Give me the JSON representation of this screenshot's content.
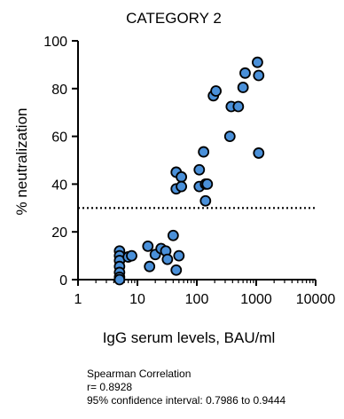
{
  "chart_data": {
    "type": "scatter",
    "title": "CATEGORY 2",
    "xlabel": "IgG serum levels, BAU/ml",
    "ylabel": "% neutralization",
    "x_scale": "log",
    "xlim": [
      1,
      10000
    ],
    "ylim": [
      0,
      100
    ],
    "x_ticks": [
      1,
      10,
      100,
      1000,
      10000
    ],
    "x_tick_labels": [
      "1",
      "10",
      "100",
      "1000",
      "10000"
    ],
    "y_ticks": [
      0,
      20,
      40,
      60,
      80,
      100
    ],
    "y_tick_labels": [
      "0",
      "20",
      "40",
      "60",
      "80",
      "100"
    ],
    "grid": false,
    "threshold_line": {
      "y": 30,
      "style": "dotted"
    },
    "marker_color": "#4a90d9",
    "marker_edge_color": "#000000",
    "points": [
      {
        "x": 5,
        "y": 12
      },
      {
        "x": 5,
        "y": 10
      },
      {
        "x": 5,
        "y": 8
      },
      {
        "x": 5,
        "y": 5.5
      },
      {
        "x": 5,
        "y": 3
      },
      {
        "x": 5,
        "y": 1
      },
      {
        "x": 5,
        "y": 0
      },
      {
        "x": 7,
        "y": 9.5
      },
      {
        "x": 8,
        "y": 10
      },
      {
        "x": 15,
        "y": 14
      },
      {
        "x": 16,
        "y": 5.5
      },
      {
        "x": 20,
        "y": 10.5
      },
      {
        "x": 25,
        "y": 13
      },
      {
        "x": 30,
        "y": 12
      },
      {
        "x": 32,
        "y": 8.5
      },
      {
        "x": 40,
        "y": 18.5
      },
      {
        "x": 45,
        "y": 4
      },
      {
        "x": 50,
        "y": 10
      },
      {
        "x": 45,
        "y": 45
      },
      {
        "x": 45,
        "y": 38
      },
      {
        "x": 55,
        "y": 43
      },
      {
        "x": 55,
        "y": 39
      },
      {
        "x": 110,
        "y": 46
      },
      {
        "x": 110,
        "y": 39
      },
      {
        "x": 130,
        "y": 53.5
      },
      {
        "x": 140,
        "y": 40
      },
      {
        "x": 150,
        "y": 40
      },
      {
        "x": 140,
        "y": 33
      },
      {
        "x": 190,
        "y": 77
      },
      {
        "x": 210,
        "y": 79
      },
      {
        "x": 360,
        "y": 60
      },
      {
        "x": 380,
        "y": 72.5
      },
      {
        "x": 500,
        "y": 72.5
      },
      {
        "x": 600,
        "y": 80.5
      },
      {
        "x": 650,
        "y": 86.5
      },
      {
        "x": 1050,
        "y": 91
      },
      {
        "x": 1100,
        "y": 85.5
      },
      {
        "x": 1100,
        "y": 53
      }
    ]
  },
  "stats": {
    "heading": "Spearman Correlation",
    "r_value": "r= 0.8928",
    "ci": "95% confidence interval: 0.7986 to 0.9444"
  }
}
